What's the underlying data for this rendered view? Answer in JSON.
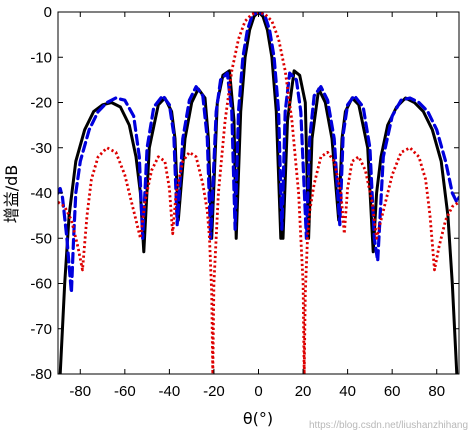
{
  "chart_data": {
    "type": "line",
    "title": "",
    "xlabel": "θ(°)",
    "ylabel": "增益/dB",
    "xlim": [
      -90,
      90
    ],
    "ylim": [
      -80,
      0
    ],
    "xticks": [
      -80,
      -60,
      -40,
      -20,
      0,
      20,
      40,
      60,
      80
    ],
    "xtick_labels": [
      "-80",
      "-60",
      "-40",
      "-20",
      "0",
      "20",
      "40",
      "60",
      "80"
    ],
    "yticks": [
      0,
      -10,
      -20,
      -30,
      -40,
      -50,
      -60,
      -70,
      -80
    ],
    "ytick_labels": [
      "0",
      "-10",
      "-20",
      "-30",
      "-40",
      "-50",
      "-60",
      "-70",
      "-80"
    ],
    "grid": false,
    "legend": "none",
    "series": [
      {
        "style": "solid",
        "color": "#000000",
        "x": [
          -89,
          -87,
          -85,
          -82,
          -78,
          -74,
          -70,
          -66,
          -62,
          -58,
          -55,
          -53,
          -51.5,
          -49,
          -45,
          -42,
          -39,
          -37.5,
          -36,
          -33,
          -30,
          -27,
          -24,
          -22.5,
          -21,
          -18.5,
          -16,
          -13,
          -11,
          -10,
          -8,
          -6,
          -4,
          -2,
          0,
          2,
          4,
          6,
          8,
          10,
          11,
          13,
          16,
          18.5,
          21,
          22.5,
          24,
          27,
          30,
          33,
          36,
          37.5,
          39,
          42,
          45,
          49,
          51.5,
          53,
          55,
          58,
          62,
          66,
          70,
          74,
          78,
          82,
          85,
          87,
          89
        ],
        "y": [
          -80,
          -60,
          -45,
          -33,
          -26,
          -22,
          -20.5,
          -20,
          -21,
          -25,
          -32,
          -40,
          -53,
          -30,
          -20.5,
          -19,
          -22,
          -28,
          -46,
          -28,
          -20,
          -17,
          -19,
          -28,
          -50,
          -20,
          -14,
          -13,
          -24,
          -50,
          -22,
          -10,
          -4,
          -1,
          0,
          -1,
          -4,
          -10,
          -22,
          -50,
          -50,
          -24,
          -13,
          -14,
          -20,
          -50,
          -28,
          -17,
          -20,
          -28,
          -46,
          -28,
          -22,
          -19,
          -20.5,
          -30,
          -53,
          -40,
          -32,
          -25,
          -21,
          -19,
          -20,
          -22,
          -26,
          -33,
          -45,
          -60,
          -80
        ]
      },
      {
        "style": "dashed",
        "color": "#0000dd",
        "x": [
          -90,
          -89,
          -88,
          -86,
          -85,
          -84,
          -83,
          -82,
          -80,
          -76,
          -72,
          -68,
          -64,
          -60,
          -56,
          -53.5,
          -52,
          -50,
          -47,
          -43,
          -40,
          -38,
          -36.5,
          -34,
          -31,
          -28,
          -25,
          -23,
          -21.5,
          -19,
          -17,
          -14,
          -12,
          -10.5,
          -9,
          -7,
          -5,
          -3,
          -1.5,
          0,
          1.5,
          3,
          5,
          7,
          9,
          10.5,
          12,
          14,
          17,
          19,
          21.5,
          23,
          25,
          28,
          31,
          34,
          36.5,
          38,
          40,
          43,
          47,
          50,
          52,
          53.5,
          56,
          60,
          64,
          68,
          72,
          76,
          80,
          84,
          87,
          89,
          90
        ],
        "y": [
          -40,
          -39,
          -41,
          -50,
          -56,
          -62,
          -50,
          -40,
          -33,
          -26,
          -22,
          -20,
          -19,
          -19.5,
          -23,
          -32,
          -50,
          -30,
          -21,
          -18.5,
          -20.5,
          -27,
          -47,
          -28,
          -19.5,
          -16.5,
          -18.5,
          -28,
          -50,
          -22,
          -15,
          -13.5,
          -22,
          -48,
          -22,
          -10,
          -4,
          -1,
          -0.3,
          0,
          -0.3,
          -1,
          -4,
          -10,
          -22,
          -48,
          -22,
          -13.5,
          -15,
          -22,
          -50,
          -28,
          -18.5,
          -16.5,
          -19.5,
          -28,
          -47,
          -27,
          -20.5,
          -18.5,
          -21,
          -30,
          -50,
          -55,
          -32,
          -23,
          -19.5,
          -19,
          -20,
          -22,
          -26,
          -33,
          -40,
          -42,
          -41
        ]
      },
      {
        "style": "dotted",
        "color": "#dd0000",
        "x": [
          -90,
          -87,
          -84,
          -81,
          -79,
          -77,
          -75,
          -72,
          -68,
          -64,
          -60,
          -57,
          -55,
          -53,
          -51,
          -48,
          -45,
          -42,
          -40,
          -38.5,
          -37,
          -34,
          -31,
          -28,
          -25,
          -23,
          -22,
          -21,
          -20.5,
          -20,
          -18,
          -15,
          -12,
          -9,
          -6,
          -3,
          0,
          3,
          6,
          9,
          12,
          15,
          18,
          20,
          20.5,
          21,
          22,
          23,
          25,
          28,
          31,
          34,
          37,
          38.5,
          40,
          42,
          45,
          48,
          51,
          53,
          55,
          57,
          60,
          64,
          68,
          72,
          75,
          77,
          79,
          81,
          84,
          87,
          90
        ],
        "y": [
          -42,
          -43,
          -46,
          -52,
          -57,
          -45,
          -37,
          -32,
          -30,
          -31,
          -36,
          -42,
          -46,
          -50,
          -42,
          -35,
          -32,
          -33,
          -39,
          -49,
          -40,
          -33,
          -31,
          -32,
          -38,
          -44,
          -50,
          -62,
          -80,
          -60,
          -40,
          -24,
          -13,
          -6,
          -2,
          -0.5,
          0,
          -0.5,
          -2,
          -6,
          -13,
          -24,
          -40,
          -60,
          -80,
          -62,
          -50,
          -44,
          -38,
          -32,
          -31,
          -33,
          -40,
          -49,
          -39,
          -33,
          -32,
          -35,
          -42,
          -50,
          -46,
          -42,
          -36,
          -31,
          -30,
          -32,
          -37,
          -45,
          -57,
          -52,
          -46,
          -43,
          -42
        ]
      }
    ],
    "watermark": "https://blog.csdn.net/liushanzhihang"
  }
}
